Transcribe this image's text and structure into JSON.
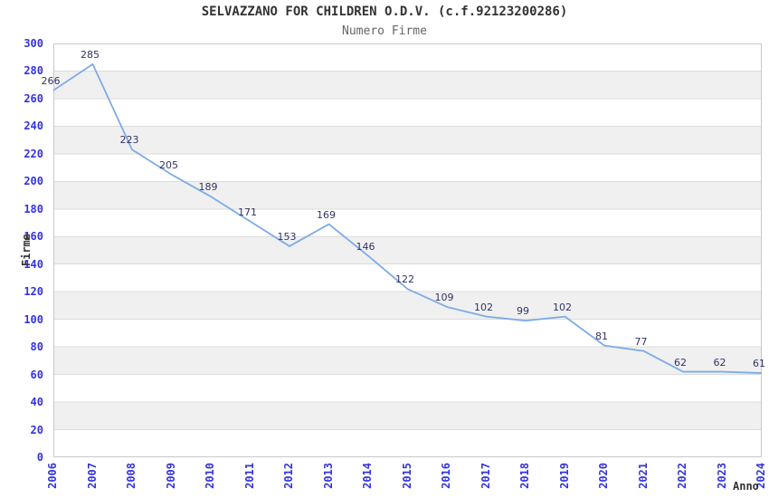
{
  "chart_data": {
    "type": "line",
    "title": "SELVAZZANO FOR CHILDREN O.D.V. (c.f.92123200286)",
    "subtitle": "Numero Firme",
    "xlabel": "Anno",
    "ylabel": "Firme",
    "x": [
      "2006",
      "2007",
      "2008",
      "2009",
      "2010",
      "2011",
      "2012",
      "2013",
      "2014",
      "2015",
      "2016",
      "2017",
      "2018",
      "2019",
      "2020",
      "2021",
      "2022",
      "2023",
      "2024"
    ],
    "values": [
      266,
      285,
      223,
      205,
      189,
      171,
      153,
      169,
      146,
      122,
      109,
      102,
      99,
      102,
      81,
      77,
      62,
      62,
      61
    ],
    "ylim": [
      0,
      300
    ],
    "ytick_step": 20,
    "grid": "horizontal-bands-alternating",
    "legend": "none",
    "colors": {
      "line": "#7dabe8",
      "tick_label": "#3333e0",
      "data_label": "#333366",
      "band": "#ffffff",
      "band_alt": "#f0f0f0",
      "grid_line": "#dcdcdc",
      "plot_border": "#c8c8c8",
      "title": "#333333",
      "subtitle": "#666666",
      "axis_title": "#333333"
    }
  }
}
